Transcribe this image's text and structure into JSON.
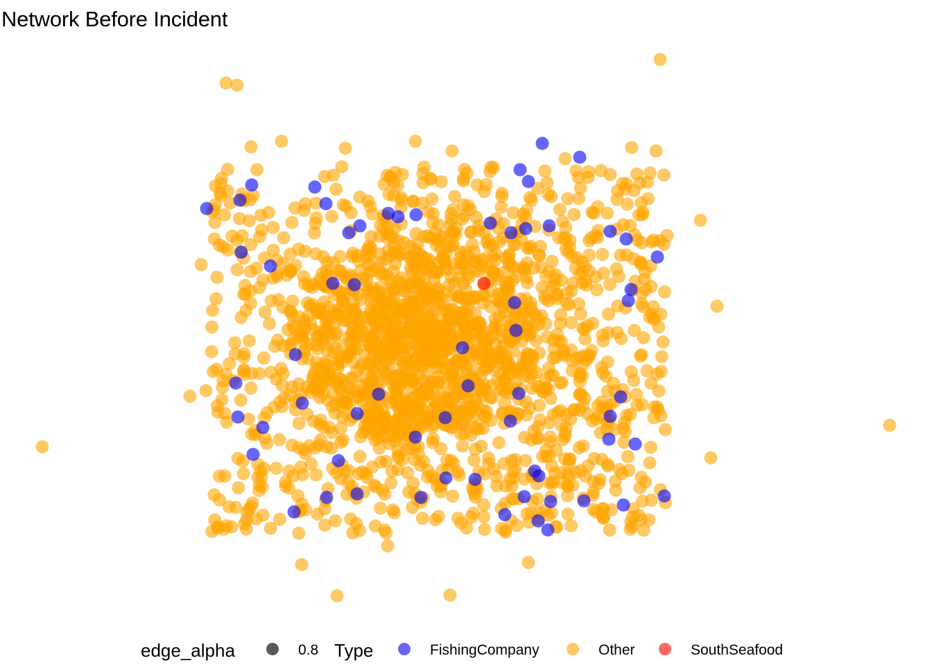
{
  "chart_data": {
    "type": "scatter",
    "title": "Network Before Incident",
    "xlabel": "",
    "ylabel": "",
    "grid": false,
    "legend_placement": "bottom",
    "legend": {
      "edge_alpha": {
        "title": "edge_alpha",
        "entries": [
          {
            "label": "0.8",
            "color": "#000000"
          }
        ]
      },
      "type": {
        "title": "Type",
        "entries": [
          {
            "label": "FishingCompany",
            "color": "#0000ff"
          },
          {
            "label": "Other",
            "color": "#ffa500"
          },
          {
            "label": "SouthSeafood",
            "color": "#ff0000"
          }
        ]
      }
    },
    "point_alpha": 0.6,
    "series": [
      {
        "name": "SouthSeafood",
        "color": "#ff0000",
        "points": [
          [
            698,
            409
          ]
        ]
      },
      {
        "name": "FishingCompany",
        "color": "#0000ff",
        "points": [
          [
            782,
            207
          ],
          [
            836,
            227
          ],
          [
            750,
            245
          ],
          [
            762,
            262
          ],
          [
            363,
            267
          ],
          [
            454,
            270
          ],
          [
            298,
            301
          ],
          [
            346,
            289
          ],
          [
            470,
            294
          ],
          [
            560,
            308
          ],
          [
            574,
            313
          ],
          [
            600,
            310
          ],
          [
            503,
            336
          ],
          [
            519,
            326
          ],
          [
            707,
            322
          ],
          [
            737,
            336
          ],
          [
            758,
            330
          ],
          [
            792,
            326
          ],
          [
            880,
            334
          ],
          [
            903,
            345
          ],
          [
            348,
            364
          ],
          [
            390,
            384
          ],
          [
            480,
            409
          ],
          [
            511,
            411
          ],
          [
            948,
            371
          ],
          [
            910,
            418
          ],
          [
            906,
            434
          ],
          [
            744,
            477
          ],
          [
            426,
            512
          ],
          [
            667,
            502
          ],
          [
            340,
            553
          ],
          [
            546,
            569
          ],
          [
            675,
            557
          ],
          [
            748,
            568
          ],
          [
            895,
            573
          ],
          [
            343,
            602
          ],
          [
            379,
            617
          ],
          [
            599,
            631
          ],
          [
            736,
            608
          ],
          [
            880,
            601
          ],
          [
            878,
            634
          ],
          [
            916,
            641
          ],
          [
            365,
            656
          ],
          [
            488,
            665
          ],
          [
            771,
            680
          ],
          [
            643,
            690
          ],
          [
            685,
            692
          ],
          [
            777,
            687
          ],
          [
            471,
            718
          ],
          [
            515,
            713
          ],
          [
            607,
            718
          ],
          [
            756,
            717
          ],
          [
            794,
            724
          ],
          [
            842,
            723
          ],
          [
            899,
            729
          ],
          [
            958,
            716
          ],
          [
            728,
            743
          ],
          [
            790,
            765
          ],
          [
            776,
            752
          ],
          [
            424,
            739
          ],
          [
            515,
            597
          ],
          [
            642,
            603
          ],
          [
            436,
            582
          ],
          [
            742,
            437
          ]
        ]
      },
      {
        "name": "Other",
        "color": "#ffa500",
        "points": [
          [
            952,
            86
          ],
          [
            326,
            120
          ],
          [
            342,
            123
          ],
          [
            1034,
            442
          ],
          [
            1283,
            614
          ],
          [
            61,
            645
          ],
          [
            1025,
            661
          ],
          [
            1010,
            318
          ],
          [
            486,
            860
          ],
          [
            649,
            859
          ],
          [
            435,
            815
          ],
          [
            274,
            572
          ],
          [
            297,
            564
          ],
          [
            290,
            382
          ],
          [
            962,
            340
          ],
          [
            599,
            204
          ],
          [
            946,
            218
          ],
          [
            911,
            213
          ],
          [
            362,
            212
          ],
          [
            406,
            204
          ],
          [
            498,
            214
          ],
          [
            652,
            218
          ],
          [
            815,
            229
          ],
          [
            762,
            812
          ],
          [
            559,
            788
          ]
        ]
      }
    ]
  }
}
